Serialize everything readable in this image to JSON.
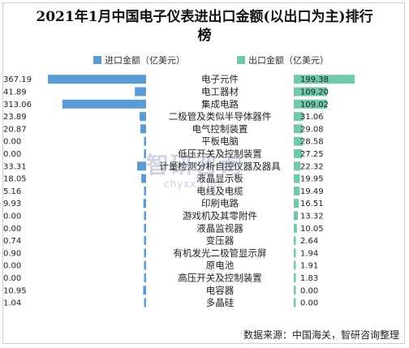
{
  "title": "2021年1月中国电子仪表进出口金额(以出口为主)排行榜",
  "source": "数据来源：中国海关，智研咨询整理",
  "watermark": {
    "main": "智研咨询",
    "sub": "chyxx.com"
  },
  "colors": {
    "import": "#5B9BD5",
    "export": "#70C9A8"
  },
  "chart_data": {
    "type": "bar",
    "categories": [
      "电子元件",
      "电工器材",
      "集成电路",
      "二极管及类似半导体器件",
      "电气控制装置",
      "平板电脑",
      "低压开关及控制装置",
      "计量检测分析自控仪器及器具",
      "液晶显示板",
      "电线及电缆",
      "印刷电路",
      "游戏机及其零附件",
      "液晶监视器",
      "变压器",
      "有机发光二极管显示屏",
      "原电池",
      "高压开关及控制装置",
      "电容器",
      "多晶硅"
    ],
    "series": [
      {
        "name": "进口金额（亿美元）",
        "values": [
          367.19,
          41.89,
          313.06,
          23.89,
          20.87,
          0.0,
          0.0,
          33.31,
          18.05,
          5.16,
          9.93,
          0.0,
          0.0,
          0.74,
          0.9,
          0.0,
          0.0,
          10.95,
          1.04
        ],
        "labels": [
          "367.19",
          "41.89",
          "313.06",
          "23.89",
          "20.87",
          "0.00",
          "0.00",
          "33.31",
          "18.05",
          "5.16",
          "9.93",
          "0.00",
          "0.00",
          "0.74",
          "0.90",
          "0.00",
          "0.00",
          "10.95",
          "1.04"
        ]
      },
      {
        "name": "出口金额（亿美元）",
        "values": [
          199.38,
          109.2,
          109.02,
          31.06,
          29.08,
          28.58,
          27.25,
          22.32,
          19.95,
          19.49,
          16.51,
          13.32,
          10.05,
          2.64,
          1.94,
          1.91,
          1.83,
          0.0,
          0.0
        ],
        "labels": [
          "199.38",
          "109.20",
          "109.02",
          "31.06",
          "29.08",
          "28.58",
          "27.25",
          "22.32",
          "19.95",
          "19.49",
          "16.51",
          "13.32",
          "10.05",
          "2.64",
          "1.94",
          "1.91",
          "1.83",
          "0.00",
          "0.00"
        ]
      }
    ]
  }
}
